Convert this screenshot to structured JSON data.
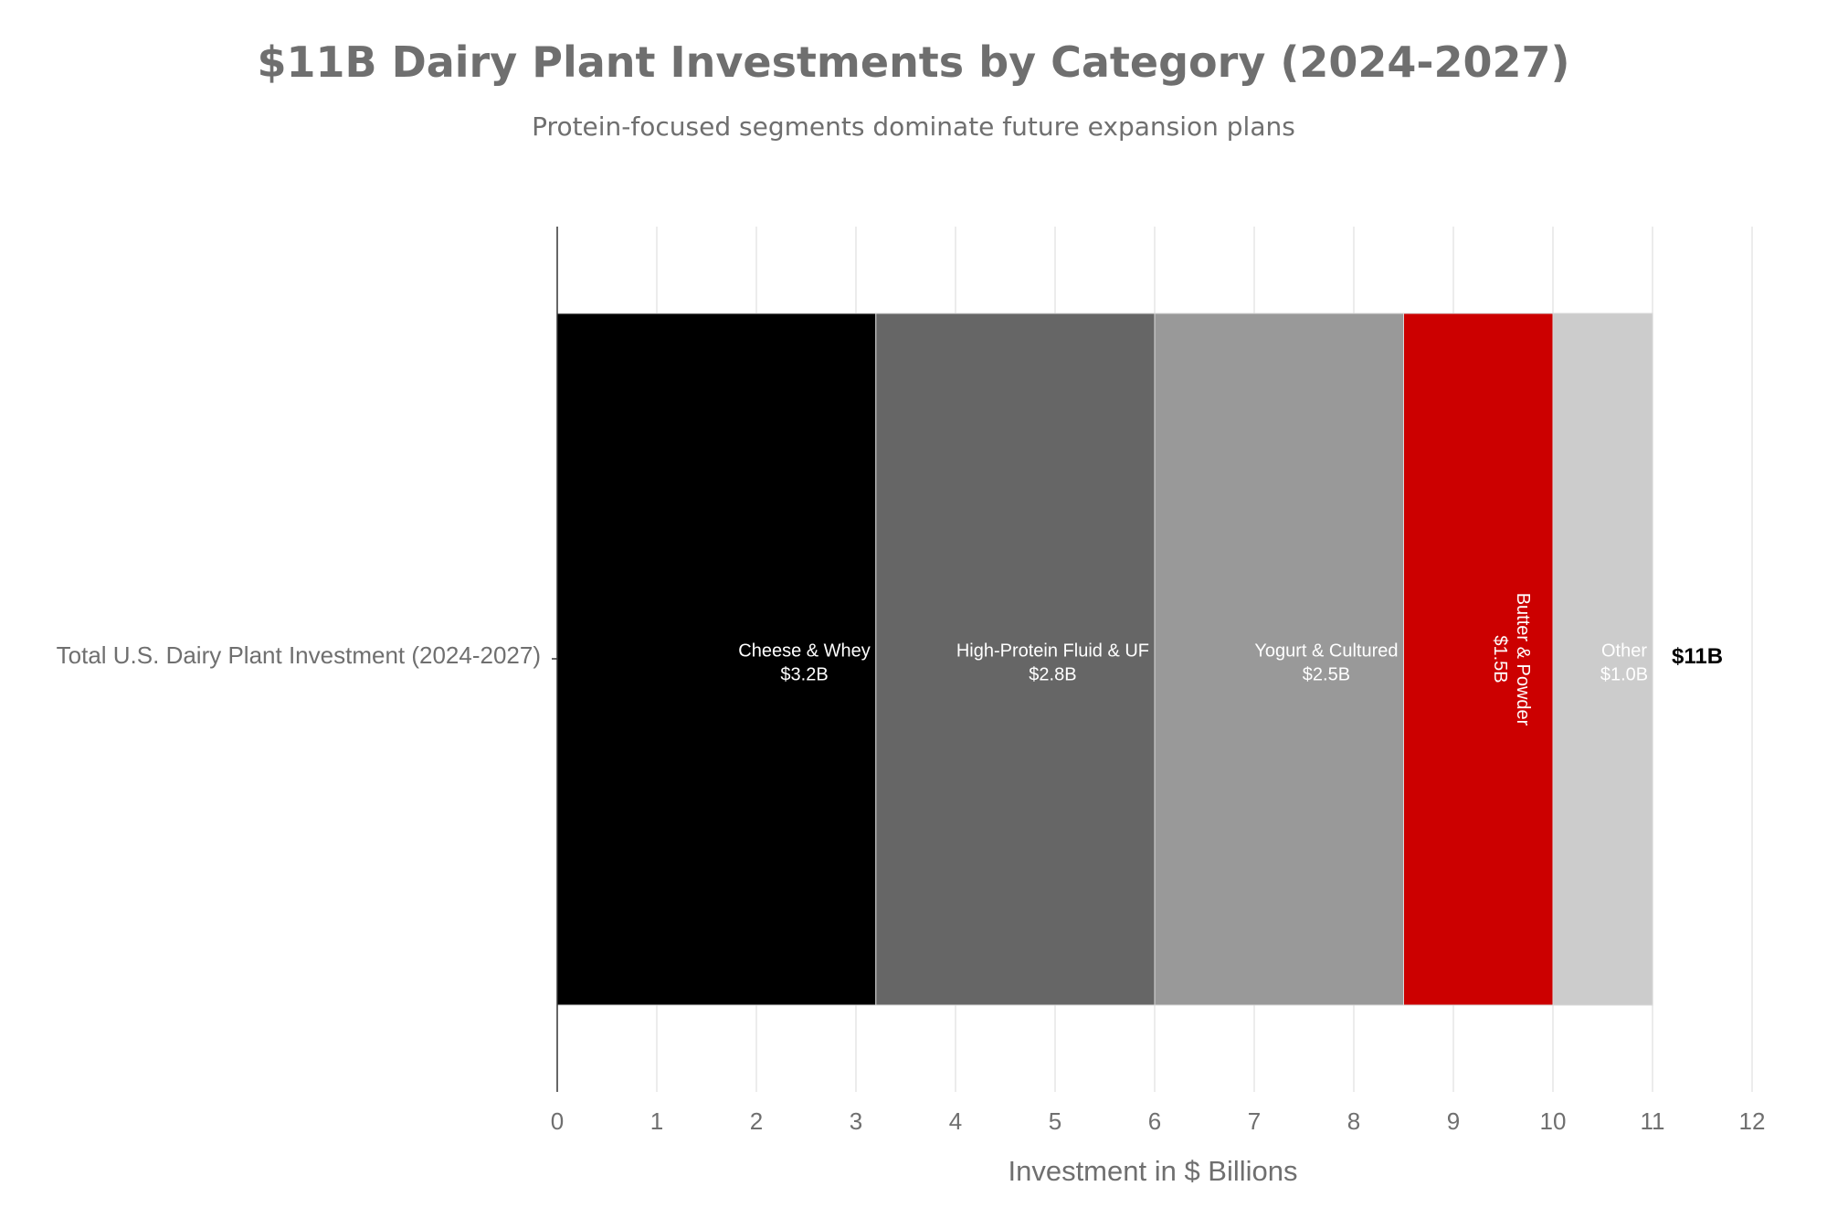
{
  "chart_data": {
    "type": "bar",
    "orientation": "horizontal",
    "stacked": true,
    "title": "$11B Dairy Plant Investments by Category (2024-2027)",
    "subtitle": "Protein-focused segments dominate future expansion plans",
    "categories": [
      "Total U.S. Dairy Plant Investment (2024-2027)"
    ],
    "series": [
      {
        "name": "Cheese & Whey",
        "values": [
          3.2
        ],
        "label": "$3.2B",
        "color": "#000000",
        "text_color": "#ffffff"
      },
      {
        "name": "High-Protein Fluid & UF",
        "values": [
          2.8
        ],
        "label": "$2.8B",
        "color": "#666666",
        "text_color": "#ffffff"
      },
      {
        "name": "Yogurt & Cultured",
        "values": [
          2.5
        ],
        "label": "$2.5B",
        "color": "#999999",
        "text_color": "#ffffff"
      },
      {
        "name": "Butter & Powder",
        "values": [
          1.5
        ],
        "label": "$1.5B",
        "color": "#cc0000",
        "text_color": "#ffffff",
        "rotated": true
      },
      {
        "name": "Other",
        "values": [
          1.0
        ],
        "label": "$1.0B",
        "color": "#cccccc",
        "text_color": "#ffffff"
      }
    ],
    "total_label": "$11B",
    "xlabel": "Investment in $ Billions",
    "ylabel": "",
    "xlim": [
      0,
      12
    ],
    "xticks": [
      "0",
      "1",
      "2",
      "3",
      "4",
      "5",
      "6",
      "7",
      "8",
      "9",
      "10",
      "11",
      "12"
    ],
    "grid": true,
    "legend": "none"
  }
}
